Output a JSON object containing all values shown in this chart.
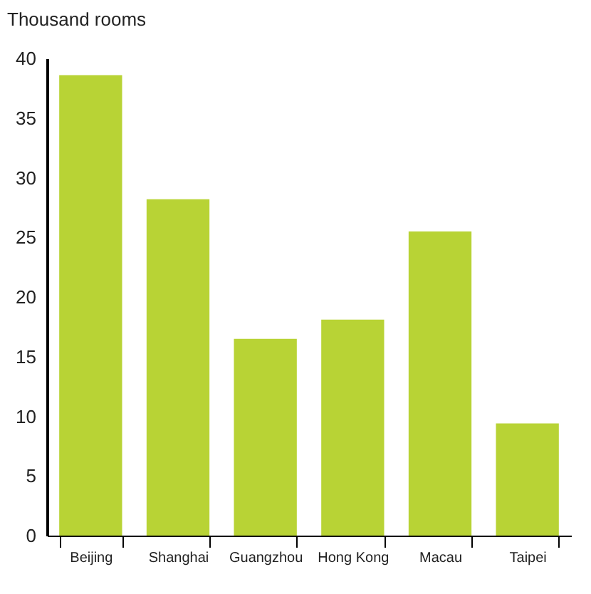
{
  "chart_data": {
    "type": "bar",
    "ylabel": "Thousand rooms",
    "categories": [
      "Beijing",
      "Shanghai",
      "Guangzhou",
      "Hong Kong",
      "Macau",
      "Taipei"
    ],
    "values": [
      38.6,
      28.2,
      16.5,
      18.1,
      25.5,
      9.4
    ],
    "color": "#b8d335",
    "ylim": [
      0,
      40
    ],
    "yticks": [
      0,
      5,
      10,
      15,
      20,
      25,
      30,
      35,
      40
    ],
    "grid": false
  }
}
